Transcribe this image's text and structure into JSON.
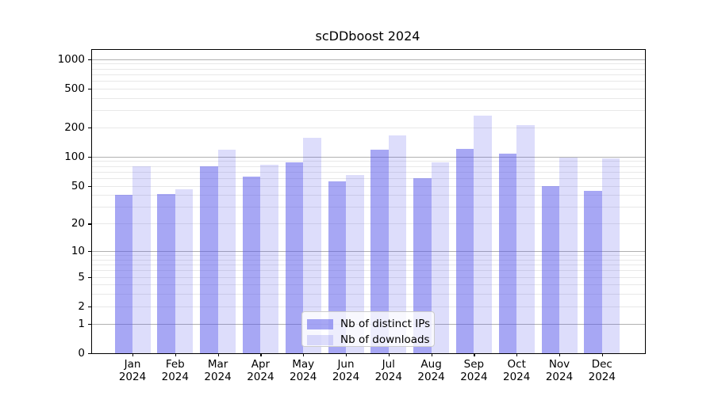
{
  "chart_data": {
    "type": "bar",
    "title": "scDDboost 2024",
    "categories": [
      "Jan",
      "Feb",
      "Mar",
      "Apr",
      "May",
      "Jun",
      "Jul",
      "Aug",
      "Sep",
      "Oct",
      "Nov",
      "Dec"
    ],
    "year_label": "2024",
    "series": [
      {
        "name": "Nb of distinct IPs",
        "color": "rgba(86,86,233,0.52)",
        "values": [
          40,
          41,
          80,
          62,
          88,
          56,
          118,
          60,
          120,
          107,
          50,
          44
        ]
      },
      {
        "name": "Nb of downloads",
        "color": "rgba(86,86,233,0.20)",
        "values": [
          79,
          46,
          118,
          82,
          156,
          65,
          164,
          87,
          262,
          212,
          98,
          96
        ]
      }
    ],
    "yscale": "log1p",
    "yticks": [
      0,
      1,
      2,
      5,
      10,
      20,
      50,
      100,
      200,
      500,
      1000
    ],
    "ylim": [
      0,
      1240
    ],
    "xlabel": "",
    "ylabel": "",
    "grid": {
      "major_color": "#b0b0b0",
      "minor_color": "#e8e8e8"
    },
    "axis_color": "#000000",
    "background_color": "#ffffff",
    "legend_position": "lower center"
  }
}
